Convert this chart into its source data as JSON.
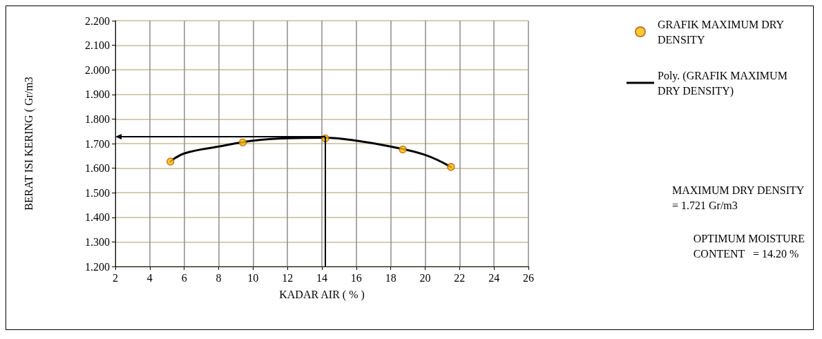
{
  "chart_data": {
    "type": "scatter",
    "xlabel": "KADAR AIR ( % )",
    "ylabel": "BERAT ISI KERING ( Gr/m3",
    "xlim": [
      2,
      26
    ],
    "xticks": [
      2,
      4,
      6,
      8,
      10,
      12,
      14,
      16,
      18,
      20,
      22,
      24,
      26
    ],
    "ylim": [
      1.2,
      2.2
    ],
    "yticks": [
      {
        "value": 1.2,
        "label": "1.200"
      },
      {
        "value": 1.3,
        "label": "1.300"
      },
      {
        "value": 1.4,
        "label": "1.400"
      },
      {
        "value": 1.5,
        "label": "1.500"
      },
      {
        "value": 1.6,
        "label": "1.600"
      },
      {
        "value": 1.7,
        "label": "1.700"
      },
      {
        "value": 1.8,
        "label": "1.800"
      },
      {
        "value": 1.9,
        "label": "1.900"
      },
      {
        "value": 2.0,
        "label": "2.000"
      },
      {
        "value": 2.1,
        "label": "2.100"
      },
      {
        "value": 2.2,
        "label": "2.200"
      }
    ],
    "grid": true,
    "legend": "top right",
    "marker": "circle",
    "series": [
      {
        "name": "GRAFIK MAXIMUM DRY DENSITY",
        "color": "#ffc000",
        "x": [
          5.2,
          9.4,
          14.2,
          18.7,
          21.5
        ],
        "values": [
          1.627,
          1.705,
          1.721,
          1.676,
          1.605
        ]
      },
      {
        "name": "Poly. (GRAFIK MAXIMUM DRY DENSITY)",
        "type": "line",
        "color": "#000000",
        "marker": "none",
        "x": [
          5.2,
          6,
          8,
          10,
          12,
          14.2,
          16,
          18,
          20,
          21.5
        ],
        "values": [
          1.627,
          1.66,
          1.688,
          1.712,
          1.722,
          1.724,
          1.712,
          1.688,
          1.654,
          1.605
        ]
      }
    ],
    "ref_lines": [
      {
        "axis": "x",
        "value": 14.2,
        "color": "#000000"
      },
      {
        "axis": "y",
        "value": 1.728,
        "color": "#000000"
      }
    ],
    "annotations": [
      "MAXIMUM DRY DENSITY\n= 1.721 Gr/m3",
      "OPTIMUM MOISTURE\nCONTENT   = 14.20 %"
    ]
  }
}
